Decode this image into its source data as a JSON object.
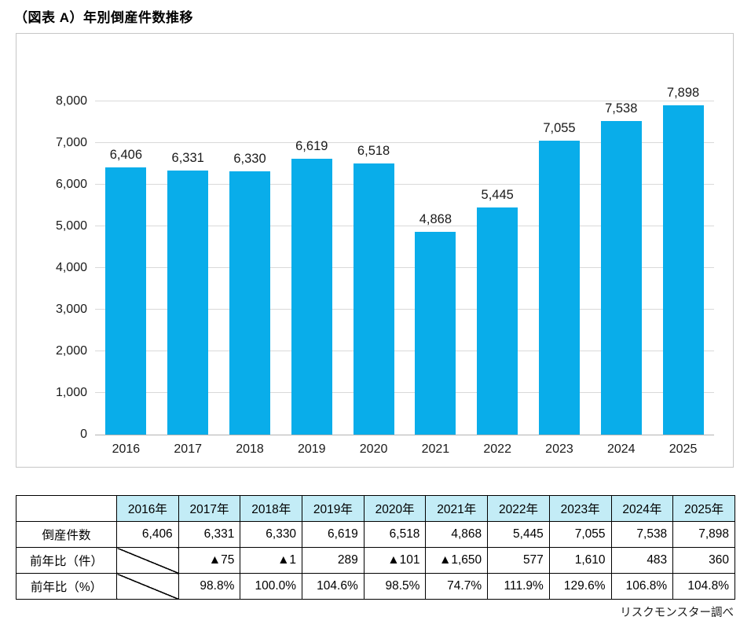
{
  "page": {
    "title": "（図表 A）年別倒産件数推移",
    "source": "リスクモンスター調べ"
  },
  "chart_data": {
    "type": "bar",
    "title": "",
    "xlabel": "",
    "ylabel": "",
    "categories": [
      "2016",
      "2017",
      "2018",
      "2019",
      "2020",
      "2021",
      "2022",
      "2023",
      "2024",
      "2025"
    ],
    "values": [
      6406,
      6331,
      6330,
      6619,
      6518,
      4868,
      5445,
      7055,
      7538,
      7898
    ],
    "value_labels": [
      "6,406",
      "6,331",
      "6,330",
      "6,619",
      "6,518",
      "4,868",
      "5,445",
      "7,055",
      "7,538",
      "7,898"
    ],
    "ylim": [
      0,
      8000
    ],
    "yticks": [
      0,
      1000,
      2000,
      3000,
      4000,
      5000,
      6000,
      7000,
      8000
    ],
    "ytick_labels": [
      "0",
      "1,000",
      "2,000",
      "3,000",
      "4,000",
      "5,000",
      "6,000",
      "7,000",
      "8,000"
    ],
    "grid": true,
    "legend": false,
    "bar_color": "#09ADEA"
  },
  "table": {
    "col_headers": [
      "",
      "2016年",
      "2017年",
      "2018年",
      "2019年",
      "2020年",
      "2021年",
      "2022年",
      "2023年",
      "2024年",
      "2025年"
    ],
    "header_bg": "#C3ECF6",
    "rows": [
      {
        "label": "倒産件数",
        "cells": [
          "6,406",
          "6,331",
          "6,330",
          "6,619",
          "6,518",
          "4,868",
          "5,445",
          "7,055",
          "7,538",
          "7,898"
        ],
        "diagonal_cols": []
      },
      {
        "label": "前年比（件）",
        "cells": [
          "",
          "▲75",
          "▲1",
          "289",
          "▲101",
          "▲1,650",
          "577",
          "1,610",
          "483",
          "360"
        ],
        "diagonal_cols": [
          0
        ]
      },
      {
        "label": "前年比（%）",
        "cells": [
          "",
          "98.8%",
          "100.0%",
          "104.6%",
          "98.5%",
          "74.7%",
          "111.9%",
          "129.6%",
          "106.8%",
          "104.8%"
        ],
        "diagonal_cols": [
          0
        ]
      }
    ]
  }
}
